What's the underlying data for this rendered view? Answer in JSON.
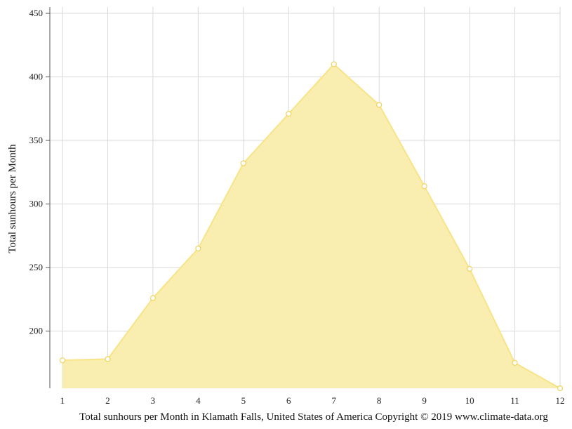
{
  "chart_data": {
    "type": "area",
    "title": "",
    "xlabel": "Total sunhours per Month in Klamath Falls, United States of America Copyright © 2019 www.climate-data.org",
    "ylabel": "Total sunhours per Month",
    "x": [
      1,
      2,
      3,
      4,
      5,
      6,
      7,
      8,
      9,
      10,
      11,
      12
    ],
    "x_tick_labels": [
      "1",
      "2",
      "3",
      "4",
      "5",
      "6",
      "7",
      "8",
      "9",
      "10",
      "11",
      "12"
    ],
    "y_ticks": [
      200,
      250,
      300,
      350,
      400,
      450
    ],
    "y_tick_labels": [
      "200",
      "250",
      "300",
      "350",
      "400",
      "450"
    ],
    "ylim": [
      155,
      455
    ],
    "grid": true,
    "legend": "none",
    "series": [
      {
        "values": [
          177,
          178,
          226,
          265,
          332,
          371,
          410,
          378,
          314,
          249,
          175,
          155
        ]
      }
    ],
    "colors": {
      "fill": "#f9eeb0",
      "line": "#f7e487",
      "point_stroke": "#f0d35a"
    }
  }
}
